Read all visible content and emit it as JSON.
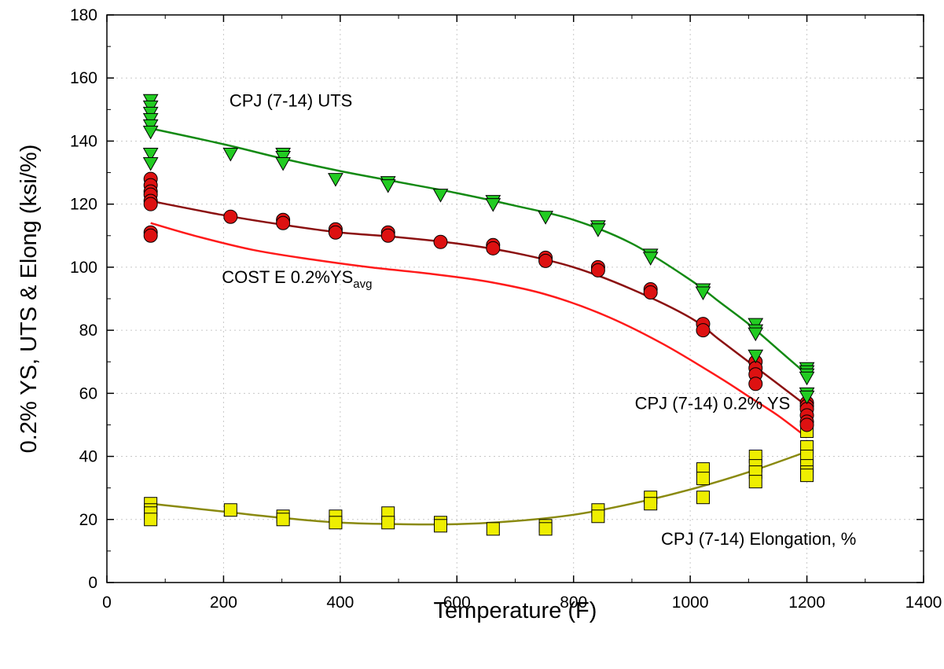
{
  "chart_data": {
    "type": "scatter",
    "xlabel": "Temperature (F)",
    "ylabel": "0.2% YS, UTS & Elong (ksi/%)",
    "xlim": [
      0,
      1400
    ],
    "ylim": [
      0,
      180
    ],
    "xticks": [
      0,
      200,
      400,
      600,
      800,
      1000,
      1200,
      1400
    ],
    "yticks": [
      0,
      20,
      40,
      60,
      80,
      100,
      120,
      140,
      160,
      180
    ],
    "grid": true,
    "series": [
      {
        "name": "CPJ (7-14) UTS",
        "marker": "triangle-down",
        "color": "#22cc22",
        "points": [
          [
            75,
            153
          ],
          [
            75,
            151
          ],
          [
            75,
            149
          ],
          [
            75,
            147
          ],
          [
            75,
            145
          ],
          [
            75,
            143
          ],
          [
            75,
            136
          ],
          [
            75,
            133
          ],
          [
            212,
            136
          ],
          [
            302,
            136
          ],
          [
            302,
            135
          ],
          [
            302,
            133
          ],
          [
            392,
            128
          ],
          [
            482,
            127
          ],
          [
            482,
            126
          ],
          [
            572,
            123
          ],
          [
            662,
            121
          ],
          [
            662,
            120
          ],
          [
            752,
            116
          ],
          [
            842,
            113
          ],
          [
            842,
            112
          ],
          [
            932,
            104
          ],
          [
            932,
            103
          ],
          [
            1022,
            93
          ],
          [
            1022,
            92
          ],
          [
            1112,
            82
          ],
          [
            1112,
            80
          ],
          [
            1112,
            79
          ],
          [
            1112,
            72
          ],
          [
            1200,
            68
          ],
          [
            1200,
            67
          ],
          [
            1200,
            66
          ],
          [
            1200,
            65
          ],
          [
            1200,
            60
          ],
          [
            1200,
            59
          ]
        ]
      },
      {
        "name": "CPJ (7-14) 0.2% YS",
        "marker": "circle",
        "color": "#dd1111",
        "points": [
          [
            75,
            128
          ],
          [
            75,
            126
          ],
          [
            75,
            124
          ],
          [
            75,
            123
          ],
          [
            75,
            121
          ],
          [
            75,
            120
          ],
          [
            75,
            111
          ],
          [
            75,
            110
          ],
          [
            212,
            116
          ],
          [
            302,
            115
          ],
          [
            302,
            114
          ],
          [
            392,
            112
          ],
          [
            392,
            111
          ],
          [
            482,
            111
          ],
          [
            482,
            110
          ],
          [
            572,
            108
          ],
          [
            662,
            107
          ],
          [
            662,
            106
          ],
          [
            752,
            103
          ],
          [
            752,
            102
          ],
          [
            842,
            100
          ],
          [
            842,
            99
          ],
          [
            932,
            93
          ],
          [
            932,
            92
          ],
          [
            1022,
            82
          ],
          [
            1022,
            80
          ],
          [
            1112,
            70
          ],
          [
            1112,
            68
          ],
          [
            1112,
            66
          ],
          [
            1112,
            63
          ],
          [
            1200,
            57
          ],
          [
            1200,
            56
          ],
          [
            1200,
            55
          ],
          [
            1200,
            53
          ],
          [
            1200,
            51
          ],
          [
            1200,
            50
          ]
        ]
      },
      {
        "name": "CPJ (7-14) Elongation, %",
        "marker": "square",
        "color": "#eeee00",
        "points": [
          [
            75,
            25
          ],
          [
            75,
            23
          ],
          [
            75,
            22
          ],
          [
            75,
            20
          ],
          [
            212,
            23
          ],
          [
            302,
            21
          ],
          [
            302,
            20
          ],
          [
            392,
            21
          ],
          [
            392,
            19
          ],
          [
            482,
            22
          ],
          [
            482,
            19
          ],
          [
            572,
            19
          ],
          [
            572,
            18
          ],
          [
            662,
            17
          ],
          [
            752,
            18
          ],
          [
            752,
            17
          ],
          [
            842,
            23
          ],
          [
            842,
            21
          ],
          [
            932,
            27
          ],
          [
            932,
            25
          ],
          [
            1022,
            36
          ],
          [
            1022,
            33
          ],
          [
            1022,
            27
          ],
          [
            1112,
            40
          ],
          [
            1112,
            37
          ],
          [
            1112,
            35
          ],
          [
            1112,
            32
          ],
          [
            1200,
            48
          ],
          [
            1200,
            43
          ],
          [
            1200,
            40
          ],
          [
            1200,
            37
          ],
          [
            1200,
            35
          ],
          [
            1200,
            34
          ]
        ]
      }
    ],
    "fits": [
      {
        "for": "CPJ (7-14) UTS",
        "color": "#138a13",
        "points": [
          [
            75,
            144
          ],
          [
            200,
            139
          ],
          [
            300,
            134.5
          ],
          [
            400,
            130.5
          ],
          [
            500,
            127
          ],
          [
            600,
            123.5
          ],
          [
            700,
            119.5
          ],
          [
            800,
            115
          ],
          [
            900,
            107.5
          ],
          [
            1000,
            96
          ],
          [
            1050,
            89
          ],
          [
            1100,
            82
          ],
          [
            1150,
            74
          ],
          [
            1200,
            66
          ]
        ]
      },
      {
        "for": "CPJ (7-14) 0.2% YS",
        "color": "#8b1010",
        "points": [
          [
            75,
            121
          ],
          [
            200,
            116.5
          ],
          [
            300,
            113.5
          ],
          [
            400,
            111
          ],
          [
            500,
            109.5
          ],
          [
            600,
            107.5
          ],
          [
            700,
            104.5
          ],
          [
            800,
            100
          ],
          [
            900,
            93
          ],
          [
            1000,
            84
          ],
          [
            1050,
            77
          ],
          [
            1100,
            70
          ],
          [
            1150,
            63
          ],
          [
            1200,
            56
          ]
        ]
      },
      {
        "for": "COST E 0.2%YS avg",
        "color": "#ff1a1a",
        "points": [
          [
            75,
            114
          ],
          [
            150,
            110
          ],
          [
            250,
            105.5
          ],
          [
            350,
            102.5
          ],
          [
            450,
            100
          ],
          [
            550,
            98
          ],
          [
            650,
            95.5
          ],
          [
            750,
            91.5
          ],
          [
            850,
            85
          ],
          [
            950,
            76
          ],
          [
            1050,
            65
          ],
          [
            1100,
            59
          ],
          [
            1150,
            53
          ],
          [
            1200,
            46
          ]
        ]
      },
      {
        "for": "CPJ (7-14) Elongation, %",
        "color": "#8a8a10",
        "points": [
          [
            75,
            25
          ],
          [
            200,
            22.5
          ],
          [
            300,
            20.5
          ],
          [
            400,
            19
          ],
          [
            500,
            18.5
          ],
          [
            600,
            18.5
          ],
          [
            700,
            19.5
          ],
          [
            800,
            21.5
          ],
          [
            900,
            25
          ],
          [
            1000,
            29.5
          ],
          [
            1100,
            35
          ],
          [
            1200,
            41.5
          ]
        ]
      }
    ],
    "annotations": [
      {
        "text": "CPJ (7-14) UTS",
        "x": 210,
        "y": 151
      },
      {
        "text": "COST E 0.2%YS",
        "sub": "avg",
        "x": 197,
        "y": 95
      },
      {
        "text": "CPJ (7-14) 0.2% YS",
        "x": 905,
        "y": 55
      },
      {
        "text": "CPJ (7-14) Elongation, %",
        "x": 950,
        "y": 12
      }
    ]
  }
}
